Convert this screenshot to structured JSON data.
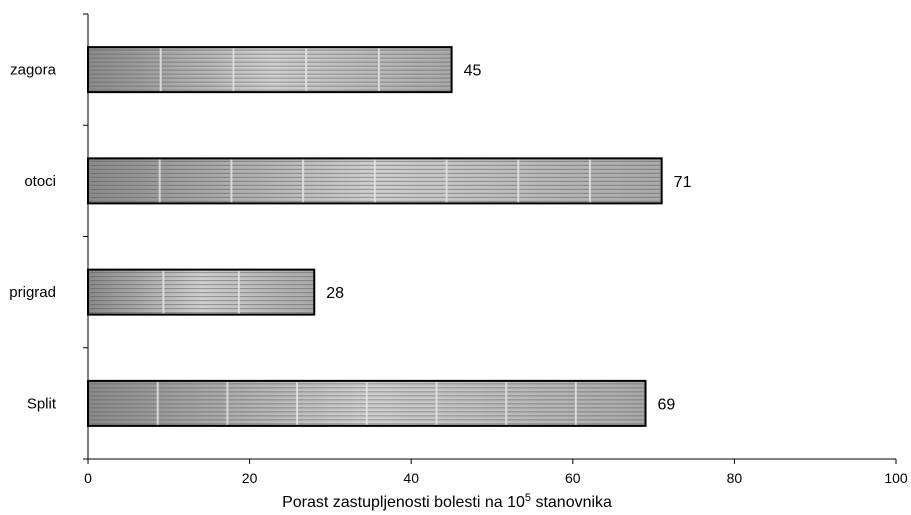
{
  "chart_data": {
    "type": "bar",
    "orientation": "horizontal",
    "categories": [
      "zagora",
      "otoci",
      "prigrad",
      "Split"
    ],
    "values": [
      45,
      71,
      28,
      69
    ],
    "xlabel": {
      "before": "Porast  zastupljenosti bolesti  na 10",
      "sup": "5",
      "after": " stanovnika"
    },
    "ylabel": "",
    "xlim": [
      0,
      100
    ],
    "xticks": [
      0,
      20,
      40,
      60,
      80,
      100
    ],
    "grid": false,
    "legend": "none",
    "bar_fill": "horizontal gray gradient stripes",
    "colors": {
      "bar_light": "#eeeeee",
      "bar_dark": "#666666",
      "outline": "#000000"
    }
  }
}
